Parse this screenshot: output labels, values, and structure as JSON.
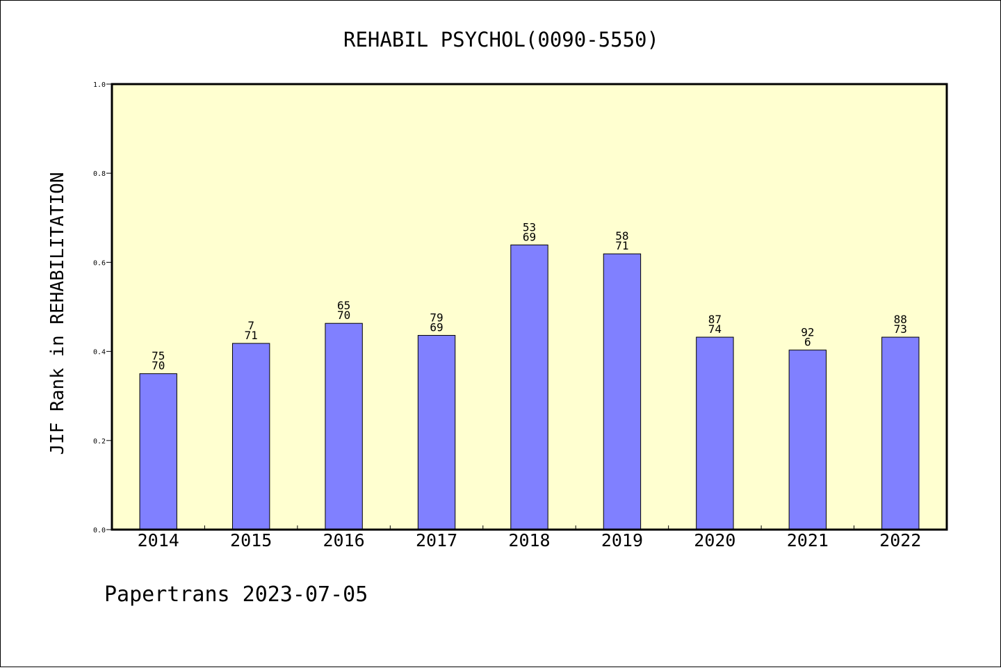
{
  "chart_data": {
    "type": "bar",
    "title": "REHABIL PSYCHOL(0090-5550)",
    "xlabel": "",
    "ylabel": "JIF Rank in REHABILITATION",
    "ylim": [
      0.0,
      1.0
    ],
    "yticks": [
      "0.0",
      "0.2",
      "0.4",
      "0.6",
      "0.8",
      "1.0"
    ],
    "grid": false,
    "categories": [
      "2014",
      "2015",
      "2016",
      "2017",
      "2018",
      "2019",
      "2020",
      "2021",
      "2022"
    ],
    "values": [
      0.35,
      0.418,
      0.463,
      0.436,
      0.639,
      0.619,
      0.432,
      0.403,
      0.432
    ],
    "bar_labels": [
      [
        "75",
        "70"
      ],
      [
        "7",
        "71"
      ],
      [
        "65",
        "70"
      ],
      [
        "79",
        "69"
      ],
      [
        "53",
        "69"
      ],
      [
        "58",
        "71"
      ],
      [
        "87",
        "74"
      ],
      [
        "92",
        "6"
      ],
      [
        "88",
        "73"
      ]
    ],
    "colors": {
      "bar": "#8080ff",
      "plot_bg": "#ffffd0",
      "axes": "#000000"
    }
  },
  "footer": "Papertrans 2023-07-05"
}
